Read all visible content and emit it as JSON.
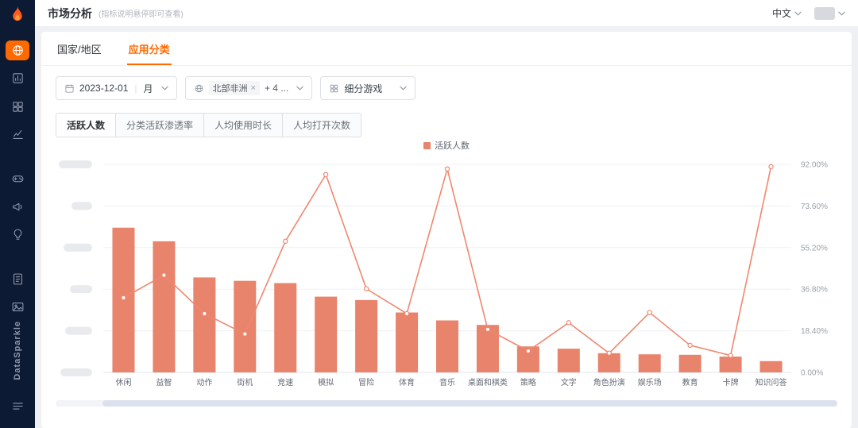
{
  "header": {
    "title": "市场分析",
    "hint": "(指标说明悬停即可查看)",
    "language": "中文"
  },
  "sidebar": {
    "brand": "DataSparkle",
    "items": [
      {
        "icon": "globe-market-icon",
        "active": true
      },
      {
        "icon": "app-bar-chart-icon",
        "active": false
      },
      {
        "icon": "category-grid-icon",
        "active": false
      },
      {
        "icon": "trend-line-icon",
        "active": false
      },
      {
        "icon": "gamepad-icon",
        "active": false
      },
      {
        "icon": "megaphone-icon",
        "active": false
      },
      {
        "icon": "bulb-icon",
        "active": false
      },
      {
        "icon": "report-doc-icon",
        "active": false
      },
      {
        "icon": "media-picture-icon",
        "active": false
      }
    ],
    "bottom_icon": "menu-icon"
  },
  "tabs": [
    {
      "label": "国家/地区",
      "active": false
    },
    {
      "label": "应用分类",
      "active": true
    }
  ],
  "filters": {
    "date": {
      "value": "2023-12-01",
      "granularity": "月"
    },
    "region": {
      "tag": "北部非洲",
      "remove": "×",
      "more": "+ 4 ..."
    },
    "category": {
      "value": "细分游戏"
    }
  },
  "metric_tabs": [
    {
      "label": "活跃人数",
      "active": true
    },
    {
      "label": "分类活跃渗透率",
      "active": false
    },
    {
      "label": "人均使用时长",
      "active": false
    },
    {
      "label": "人均打开次数",
      "active": false
    }
  ],
  "legend": {
    "label": "活跃人数"
  },
  "chart_data": {
    "type": "bar",
    "title": "",
    "categories": [
      "休闲",
      "益智",
      "动作",
      "街机",
      "竞速",
      "模拟",
      "冒险",
      "体育",
      "音乐",
      "桌面和棋类",
      "策略",
      "文字",
      "角色扮演",
      "娱乐场",
      "教育",
      "卡牌",
      "知识问答"
    ],
    "series": [
      {
        "name": "活跃人数(柱)",
        "type": "bar",
        "values": [
          64,
          58,
          42,
          40.5,
          39.5,
          33.5,
          32,
          26.5,
          23,
          21,
          11.5,
          10.5,
          8.5,
          8,
          7.8,
          7,
          5
        ]
      },
      {
        "name": "活跃人数(线)",
        "type": "line",
        "values": [
          33,
          43,
          26,
          17,
          58,
          87.5,
          37,
          26,
          90,
          19,
          9.5,
          22,
          8.5,
          26.5,
          12,
          7.5,
          91
        ]
      }
    ],
    "xlabel": "",
    "ylabel": "",
    "ylim": [
      0,
      92
    ],
    "y_axis_right_ticks": [
      "0.00%",
      "18.40%",
      "36.80%",
      "55.20%",
      "73.60%",
      "92.00%"
    ],
    "left_axis_redacted": true,
    "grid": true,
    "legend_position": "top-center",
    "colors": {
      "bar": "#E8836C",
      "line": "#F0876E"
    }
  }
}
